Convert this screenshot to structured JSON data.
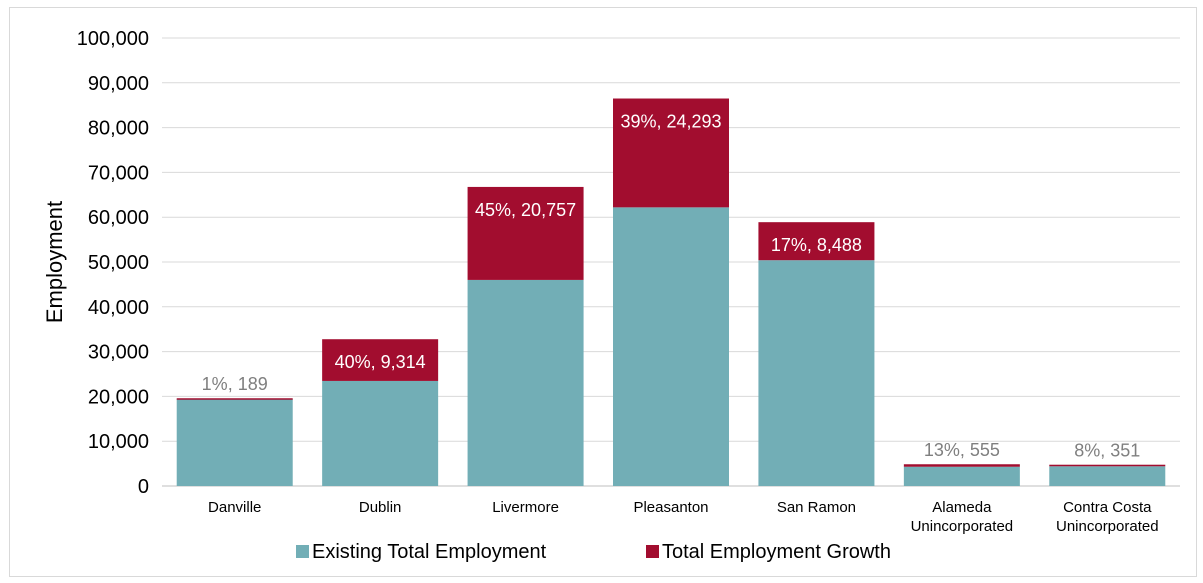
{
  "chart_data": {
    "type": "bar",
    "stacked": true,
    "ylabel": "Employment",
    "xlabel": "",
    "ylim": [
      0,
      100000
    ],
    "y_ticks": [
      "0",
      "10,000",
      "20,000",
      "30,000",
      "40,000",
      "50,000",
      "60,000",
      "70,000",
      "80,000",
      "90,000",
      "100,000"
    ],
    "grid": true,
    "legend_position": "bottom",
    "categories": [
      [
        "Danville"
      ],
      [
        "Dublin"
      ],
      [
        "Livermore"
      ],
      [
        "Pleasanton"
      ],
      [
        "San Ramon"
      ],
      [
        "Alameda",
        "Unincorporated"
      ],
      [
        "Contra Costa",
        "Unincorporated"
      ]
    ],
    "series": [
      {
        "name": "Existing Total Employment",
        "color": "#72aeb6",
        "values": [
          19400,
          23450,
          46000,
          62200,
          50400,
          4300,
          4400
        ]
      },
      {
        "name": "Total Employment Growth",
        "color": "#a20d2f",
        "values": [
          189,
          9314,
          20757,
          24293,
          8488,
          555,
          351
        ]
      }
    ],
    "data_labels": [
      "1%, 189",
      "40%, 9,314",
      "45%, 20,757",
      "39%, 24,293",
      "17%, 8,488",
      "13%, 555",
      "8%, 351"
    ],
    "label_inside": [
      false,
      true,
      true,
      true,
      true,
      false,
      false
    ]
  }
}
